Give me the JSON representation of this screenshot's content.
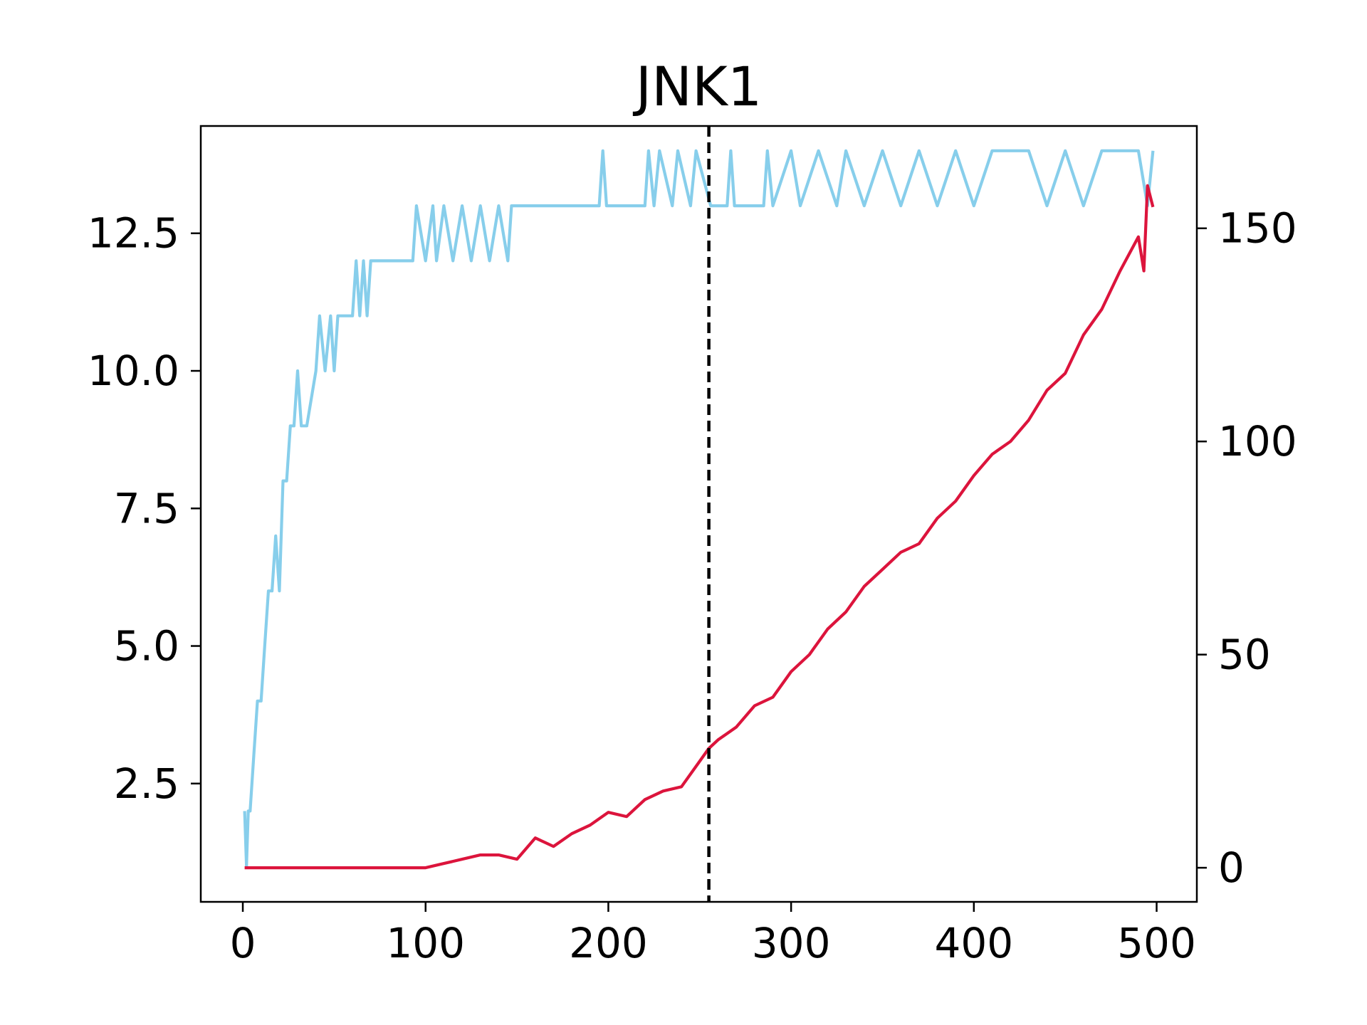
{
  "chart_data": {
    "type": "line",
    "title": "JNK1",
    "xlabel": "",
    "ylabel": "",
    "y2label": "",
    "xlim": [
      -23,
      522
    ],
    "ylim": [
      0.35,
      14.45
    ],
    "y2lim": [
      -8,
      174
    ],
    "x_ticks": [
      0,
      100,
      200,
      300,
      400,
      500
    ],
    "x_tick_labels": [
      "0",
      "100",
      "200",
      "300",
      "400",
      "500"
    ],
    "y_ticks": [
      2.5,
      5.0,
      7.5,
      10.0,
      12.5
    ],
    "y_tick_labels": [
      "2.5",
      "5.0",
      "7.5",
      "10.0",
      "12.5"
    ],
    "y2_ticks": [
      0,
      50,
      100,
      150
    ],
    "y2_tick_labels": [
      "0",
      "50",
      "100",
      "150"
    ],
    "vline_x": 255,
    "grid": false,
    "series": [
      {
        "axis": "left",
        "color": "#87ceeb",
        "x": [
          1,
          2,
          3,
          4,
          6,
          8,
          10,
          12,
          14,
          16,
          18,
          20,
          22,
          24,
          26,
          28,
          30,
          32,
          35,
          40,
          42,
          45,
          48,
          50,
          52,
          55,
          58,
          60,
          62,
          64,
          66,
          68,
          70,
          72,
          75,
          80,
          85,
          90,
          93,
          95,
          100,
          104,
          106,
          110,
          115,
          120,
          125,
          130,
          135,
          140,
          145,
          147,
          150,
          195,
          197,
          199,
          220,
          222,
          225,
          228,
          235,
          238,
          245,
          248,
          256,
          265,
          267,
          269,
          285,
          287,
          290,
          300,
          305,
          315,
          325,
          330,
          340,
          350,
          360,
          370,
          380,
          390,
          400,
          410,
          420,
          430,
          440,
          450,
          460,
          470,
          480,
          490,
          495,
          498
        ],
        "y": [
          2,
          1,
          2,
          2,
          3,
          4,
          4,
          5,
          6,
          6,
          7,
          6,
          8,
          8,
          9,
          9,
          10,
          9,
          9,
          10,
          11,
          10,
          11,
          10,
          11,
          11,
          11,
          11,
          12,
          11,
          12,
          11,
          12,
          12,
          12,
          12,
          12,
          12,
          12,
          13,
          12,
          13,
          12,
          13,
          12,
          13,
          12,
          13,
          12,
          13,
          12,
          13,
          13,
          13,
          14,
          13,
          13,
          14,
          13,
          14,
          13,
          14,
          13,
          14,
          13,
          13,
          14,
          13,
          13,
          14,
          13,
          14,
          13,
          14,
          13,
          14,
          13,
          14,
          13,
          14,
          13,
          14,
          13,
          14,
          14,
          14,
          13,
          14,
          13,
          14,
          14,
          14,
          13,
          14
        ]
      },
      {
        "axis": "right",
        "color": "#dc143c",
        "x": [
          1,
          20,
          40,
          60,
          80,
          95,
          100,
          110,
          120,
          130,
          140,
          150,
          160,
          170,
          180,
          190,
          200,
          210,
          220,
          230,
          240,
          250,
          255,
          260,
          270,
          280,
          290,
          300,
          310,
          320,
          330,
          340,
          350,
          360,
          370,
          380,
          390,
          400,
          410,
          420,
          430,
          440,
          450,
          460,
          470,
          480,
          485,
          490,
          493,
          495,
          498
        ],
        "y": [
          0,
          0,
          0,
          0,
          0,
          0,
          0,
          1,
          2,
          3,
          3,
          2,
          7,
          5,
          8,
          10,
          13,
          12,
          16,
          18,
          19,
          25,
          28,
          30,
          33,
          38,
          40,
          46,
          50,
          56,
          60,
          66,
          70,
          74,
          76,
          82,
          86,
          92,
          97,
          100,
          105,
          112,
          116,
          125,
          131,
          140,
          144,
          148,
          140,
          160,
          155
        ]
      }
    ]
  }
}
